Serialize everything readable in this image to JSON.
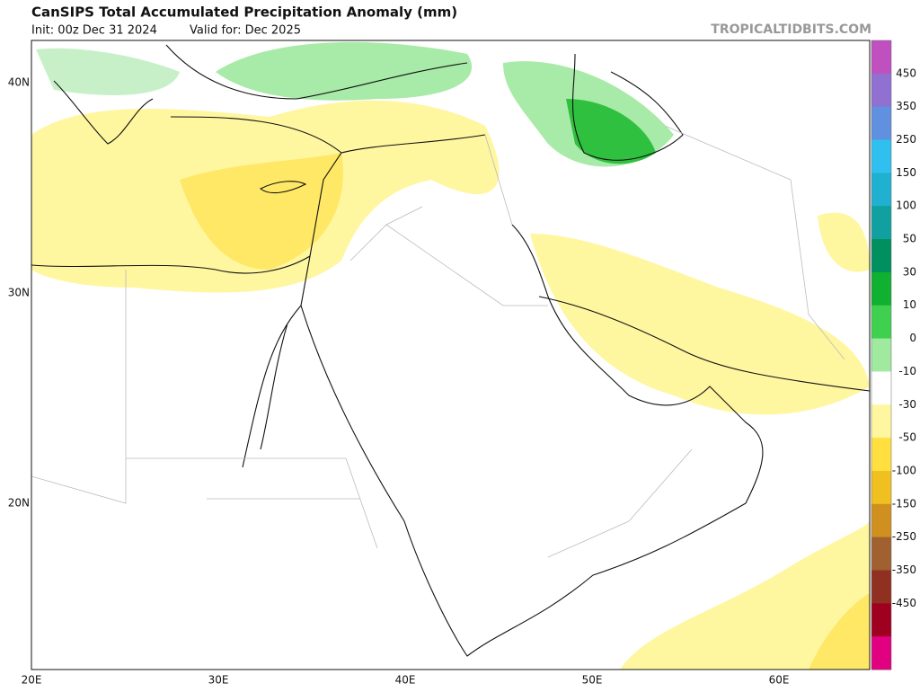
{
  "header": {
    "title": "CanSIPS Total Accumulated Precipitation Anomaly (mm)",
    "init": "Init: 00z Dec 31 2024",
    "valid": "Valid for: Dec 2025",
    "watermark": "TROPICALTIDBITS.COM"
  },
  "map": {
    "lat_labels": [
      "40N",
      "30N",
      "20N"
    ],
    "lon_labels": [
      "20E",
      "30E",
      "40E",
      "50E",
      "60E"
    ]
  },
  "colorbar": {
    "labels": [
      "450",
      "350",
      "250",
      "150",
      "100",
      "50",
      "30",
      "10",
      "0",
      "-10",
      "-30",
      "-50",
      "-100",
      "-150",
      "-250",
      "-350",
      "-450"
    ],
    "colors": [
      "#c050c0",
      "#9070d0",
      "#6090e0",
      "#30c0f0",
      "#20b0d0",
      "#10a0a0",
      "#009060",
      "#10b030",
      "#40d050",
      "#a0eaa0",
      "#ffffff",
      "#fff6a0",
      "#ffe040",
      "#f0c020",
      "#d09020",
      "#a06030",
      "#903020",
      "#a00020",
      "#e00080"
    ]
  }
}
